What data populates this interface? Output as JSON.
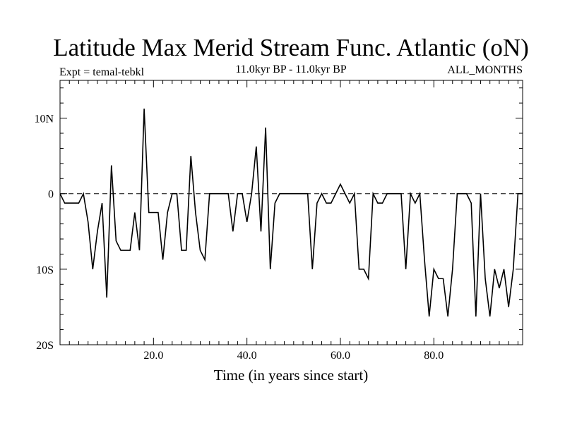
{
  "chart_data": {
    "type": "line",
    "title": "Latitude Max Merid Stream Func. Atlantic (oN)",
    "subtitle_left": "Expt = temal-tebkl",
    "subtitle_center": "11.0kyr BP - 11.0kyr BP",
    "subtitle_right": "ALL_MONTHS",
    "xlabel": "Time (in years since start)",
    "ylabel": "",
    "xlim": [
      0,
      99
    ],
    "ylim": [
      -20,
      15
    ],
    "x_ticks": [
      {
        "value": 20,
        "label": "20.0"
      },
      {
        "value": 40,
        "label": "40.0"
      },
      {
        "value": 60,
        "label": "60.0"
      },
      {
        "value": 80,
        "label": "80.0"
      }
    ],
    "y_ticks": [
      {
        "value": 10,
        "label": "10N"
      },
      {
        "value": 0,
        "label": "0"
      },
      {
        "value": -10,
        "label": "10S"
      },
      {
        "value": -20,
        "label": "20S"
      }
    ],
    "reference_line": 0,
    "x": [
      0,
      1,
      2,
      3,
      4,
      5,
      6,
      7,
      8,
      9,
      10,
      11,
      12,
      13,
      14,
      15,
      16,
      17,
      18,
      19,
      20,
      21,
      22,
      23,
      24,
      25,
      26,
      27,
      28,
      29,
      30,
      31,
      32,
      33,
      34,
      35,
      36,
      37,
      38,
      39,
      40,
      41,
      42,
      43,
      44,
      45,
      46,
      47,
      48,
      49,
      50,
      51,
      52,
      53,
      54,
      55,
      56,
      57,
      58,
      59,
      60,
      61,
      62,
      63,
      64,
      65,
      66,
      67,
      68,
      69,
      70,
      71,
      72,
      73,
      74,
      75,
      76,
      77,
      78,
      79,
      80,
      81,
      82,
      83,
      84,
      85,
      86,
      87,
      88,
      89,
      90,
      91,
      92,
      93,
      94,
      95,
      96,
      97,
      98,
      99
    ],
    "values": [
      0,
      -1.25,
      -1.25,
      -1.25,
      -1.25,
      0,
      -3.75,
      -10,
      -5,
      -1.25,
      -13.75,
      3.75,
      -6.25,
      -7.5,
      -7.5,
      -7.5,
      -2.5,
      -7.5,
      11.25,
      -2.5,
      -2.5,
      -2.5,
      -8.75,
      -2.5,
      0,
      0,
      -7.5,
      -7.5,
      5,
      -2.5,
      -7.5,
      -8.75,
      0,
      0,
      0,
      0,
      0,
      -5,
      0,
      0,
      -3.75,
      0,
      6.25,
      -5,
      8.75,
      -10,
      -1.25,
      0,
      0,
      0,
      0,
      0,
      0,
      0,
      -10,
      -1.25,
      0,
      -1.25,
      -1.25,
      0,
      1.25,
      0,
      -1.25,
      0,
      -10,
      -10,
      -11.25,
      0,
      -1.25,
      -1.25,
      0,
      0,
      0,
      0,
      -10,
      0,
      -1.25,
      0,
      -8.75,
      -16.25,
      -10,
      -11.25,
      -11.25,
      -16.25,
      -10,
      0,
      0,
      0,
      -1.25,
      -16.25,
      0,
      -11.25,
      -16.25,
      -10,
      -12.5,
      -10,
      -15,
      -10,
      0,
      0
    ],
    "grid": false
  }
}
